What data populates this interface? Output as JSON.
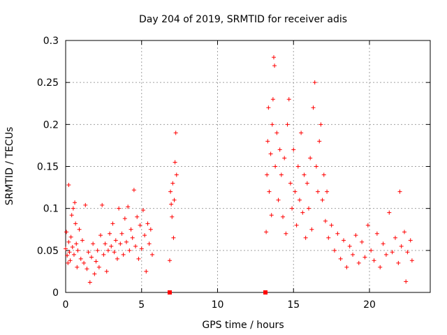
{
  "chart_data": {
    "type": "scatter",
    "title": "Day 204 of 2019, SRMTID for receiver adis",
    "xlabel": "GPS time / hours",
    "ylabel": "SRMTID / TECUs",
    "xlim": [
      0,
      24
    ],
    "ylim": [
      0,
      0.3
    ],
    "x_ticks": [
      0,
      5,
      10,
      15,
      20
    ],
    "x_tick_labels": [
      "0",
      "5",
      "10",
      "15",
      "20"
    ],
    "y_ticks": [
      0,
      0.05,
      0.1,
      0.15,
      0.2,
      0.25,
      0.3
    ],
    "y_tick_labels": [
      "0",
      "0.05",
      "0.1",
      "0.15",
      "0.2",
      "0.25",
      "0.3"
    ],
    "grid": true,
    "marker": "plus",
    "color": "#ff0000",
    "series": [
      {
        "name": "SRMTID",
        "points": [
          [
            0.0,
            0.052
          ],
          [
            0.05,
            0.072
          ],
          [
            0.1,
            0.044
          ],
          [
            0.15,
            0.035
          ],
          [
            0.2,
            0.06
          ],
          [
            0.2,
            0.128
          ],
          [
            0.25,
            0.048
          ],
          [
            0.3,
            0.038
          ],
          [
            0.35,
            0.066
          ],
          [
            0.4,
            0.092
          ],
          [
            0.45,
            0.054
          ],
          [
            0.5,
            0.1
          ],
          [
            0.55,
            0.045
          ],
          [
            0.6,
            0.107
          ],
          [
            0.65,
            0.082
          ],
          [
            0.7,
            0.058
          ],
          [
            0.75,
            0.03
          ],
          [
            0.8,
            0.05
          ],
          [
            0.9,
            0.075
          ],
          [
            1.0,
            0.04
          ],
          [
            1.1,
            0.062
          ],
          [
            1.2,
            0.035
          ],
          [
            1.3,
            0.104
          ],
          [
            1.4,
            0.028
          ],
          [
            1.5,
            0.048
          ],
          [
            1.6,
            0.012
          ],
          [
            1.7,
            0.042
          ],
          [
            1.8,
            0.058
          ],
          [
            1.9,
            0.022
          ],
          [
            2.0,
            0.037
          ],
          [
            2.1,
            0.05
          ],
          [
            2.2,
            0.03
          ],
          [
            2.3,
            0.068
          ],
          [
            2.4,
            0.104
          ],
          [
            2.5,
            0.045
          ],
          [
            2.6,
            0.058
          ],
          [
            2.7,
            0.025
          ],
          [
            2.8,
            0.05
          ],
          [
            2.9,
            0.07
          ],
          [
            3.0,
            0.055
          ],
          [
            3.1,
            0.082
          ],
          [
            3.2,
            0.048
          ],
          [
            3.3,
            0.062
          ],
          [
            3.4,
            0.04
          ],
          [
            3.5,
            0.1
          ],
          [
            3.6,
            0.058
          ],
          [
            3.7,
            0.07
          ],
          [
            3.8,
            0.045
          ],
          [
            3.9,
            0.088
          ],
          [
            4.0,
            0.06
          ],
          [
            4.1,
            0.102
          ],
          [
            4.2,
            0.05
          ],
          [
            4.3,
            0.075
          ],
          [
            4.4,
            0.065
          ],
          [
            4.5,
            0.122
          ],
          [
            4.6,
            0.055
          ],
          [
            4.7,
            0.09
          ],
          [
            4.8,
            0.04
          ],
          [
            4.9,
            0.08
          ],
          [
            5.0,
            0.052
          ],
          [
            5.1,
            0.098
          ],
          [
            5.2,
            0.068
          ],
          [
            5.3,
            0.025
          ],
          [
            5.4,
            0.082
          ],
          [
            5.5,
            0.058
          ],
          [
            5.6,
            0.075
          ],
          [
            5.7,
            0.045
          ],
          [
            6.85,
            0.038
          ],
          [
            6.9,
            0.12
          ],
          [
            6.95,
            0.105
          ],
          [
            7.0,
            0.09
          ],
          [
            7.05,
            0.13
          ],
          [
            7.1,
            0.065
          ],
          [
            7.15,
            0.11
          ],
          [
            7.2,
            0.155
          ],
          [
            7.25,
            0.19
          ],
          [
            7.3,
            0.14
          ],
          [
            13.2,
            0.072
          ],
          [
            13.25,
            0.14
          ],
          [
            13.3,
            0.18
          ],
          [
            13.35,
            0.22
          ],
          [
            13.4,
            0.12
          ],
          [
            13.5,
            0.165
          ],
          [
            13.55,
            0.092
          ],
          [
            13.6,
            0.2
          ],
          [
            13.65,
            0.23
          ],
          [
            13.7,
            0.28
          ],
          [
            13.75,
            0.27
          ],
          [
            13.8,
            0.15
          ],
          [
            13.9,
            0.19
          ],
          [
            14.0,
            0.11
          ],
          [
            14.1,
            0.17
          ],
          [
            14.2,
            0.14
          ],
          [
            14.3,
            0.09
          ],
          [
            14.4,
            0.16
          ],
          [
            14.5,
            0.07
          ],
          [
            14.6,
            0.2
          ],
          [
            14.7,
            0.23
          ],
          [
            14.8,
            0.13
          ],
          [
            14.9,
            0.1
          ],
          [
            15.0,
            0.17
          ],
          [
            15.1,
            0.12
          ],
          [
            15.2,
            0.08
          ],
          [
            15.3,
            0.15
          ],
          [
            15.4,
            0.11
          ],
          [
            15.5,
            0.19
          ],
          [
            15.6,
            0.095
          ],
          [
            15.7,
            0.14
          ],
          [
            15.8,
            0.065
          ],
          [
            15.9,
            0.13
          ],
          [
            16.0,
            0.1
          ],
          [
            16.1,
            0.16
          ],
          [
            16.2,
            0.075
          ],
          [
            16.3,
            0.22
          ],
          [
            16.4,
            0.25
          ],
          [
            16.5,
            0.15
          ],
          [
            16.6,
            0.12
          ],
          [
            16.7,
            0.18
          ],
          [
            16.8,
            0.2
          ],
          [
            16.9,
            0.11
          ],
          [
            17.0,
            0.14
          ],
          [
            17.1,
            0.085
          ],
          [
            17.2,
            0.12
          ],
          [
            17.3,
            0.065
          ],
          [
            17.5,
            0.08
          ],
          [
            17.7,
            0.05
          ],
          [
            17.9,
            0.07
          ],
          [
            18.1,
            0.04
          ],
          [
            18.3,
            0.062
          ],
          [
            18.5,
            0.03
          ],
          [
            18.7,
            0.055
          ],
          [
            18.9,
            0.045
          ],
          [
            19.1,
            0.068
          ],
          [
            19.3,
            0.035
          ],
          [
            19.5,
            0.06
          ],
          [
            19.7,
            0.042
          ],
          [
            19.9,
            0.08
          ],
          [
            20.1,
            0.05
          ],
          [
            20.3,
            0.038
          ],
          [
            20.5,
            0.07
          ],
          [
            20.7,
            0.03
          ],
          [
            20.9,
            0.058
          ],
          [
            21.1,
            0.045
          ],
          [
            21.3,
            0.095
          ],
          [
            21.5,
            0.048
          ],
          [
            21.7,
            0.065
          ],
          [
            21.9,
            0.035
          ],
          [
            22.0,
            0.12
          ],
          [
            22.1,
            0.055
          ],
          [
            22.3,
            0.072
          ],
          [
            22.4,
            0.013
          ],
          [
            22.5,
            0.048
          ],
          [
            22.7,
            0.062
          ],
          [
            22.8,
            0.038
          ]
        ]
      }
    ],
    "markers_on_axis": [
      6.85,
      13.15
    ]
  }
}
